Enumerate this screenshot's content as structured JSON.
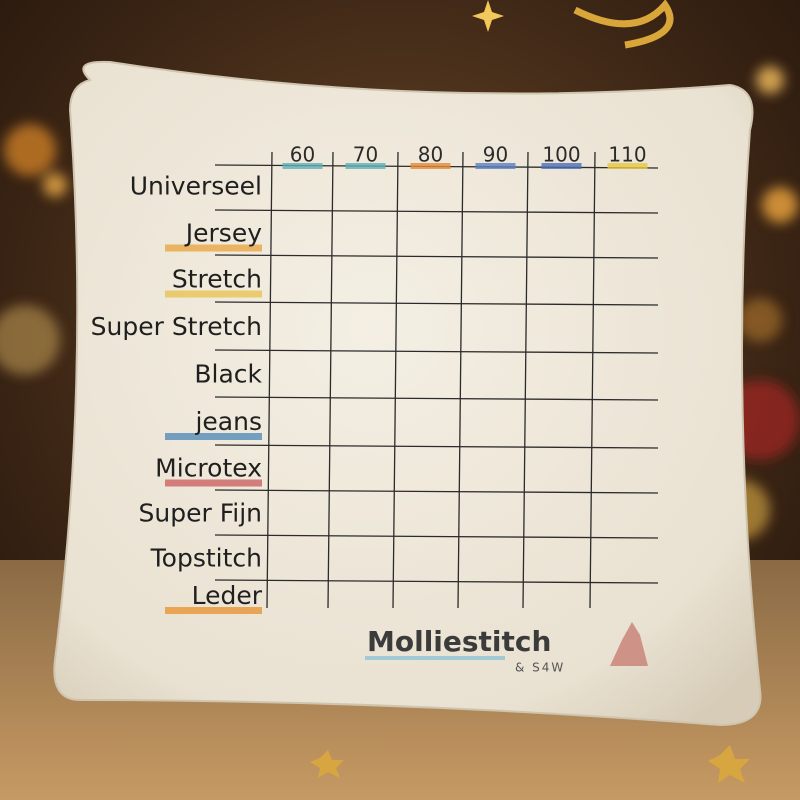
{
  "table": {
    "columns": [
      "60",
      "70",
      "80",
      "90",
      "100",
      "110"
    ],
    "rows": [
      "Universeel",
      "Jersey",
      "Stretch",
      "Super Stretch",
      "Black",
      "jeans",
      "Microtex",
      "Super Fijn",
      "Topstitch",
      "Leder"
    ]
  },
  "logo": {
    "name": "Molliestitch",
    "sub": "& S4W"
  }
}
